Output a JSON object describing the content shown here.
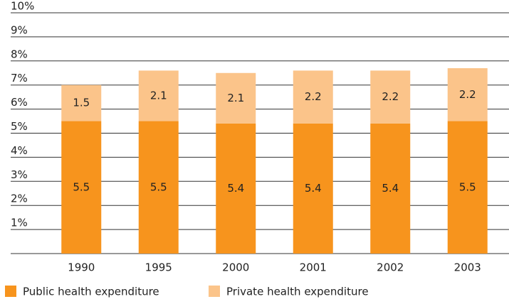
{
  "chart_data": {
    "type": "stacked_bar",
    "categories": [
      "1990",
      "1995",
      "2000",
      "2001",
      "2002",
      "2003"
    ],
    "series": [
      {
        "name": "Public health expenditure",
        "color": "#f7941d",
        "values": [
          5.5,
          5.5,
          5.4,
          5.4,
          5.4,
          5.5
        ]
      },
      {
        "name": "Private health expenditure",
        "color": "#fbc48a",
        "values": [
          1.5,
          2.1,
          2.1,
          2.2,
          2.2,
          2.2
        ]
      }
    ],
    "ylim": [
      0,
      10
    ],
    "yticks": [
      {
        "value": 1,
        "label": "1%"
      },
      {
        "value": 2,
        "label": "2%"
      },
      {
        "value": 3,
        "label": "3%"
      },
      {
        "value": 4,
        "label": "4%"
      },
      {
        "value": 5,
        "label": "5%"
      },
      {
        "value": 6,
        "label": "6%"
      },
      {
        "value": 7,
        "label": "7%"
      },
      {
        "value": 8,
        "label": "8%"
      },
      {
        "value": 9,
        "label": "9%"
      },
      {
        "value": 10,
        "label": "10%"
      }
    ],
    "grid": true
  }
}
